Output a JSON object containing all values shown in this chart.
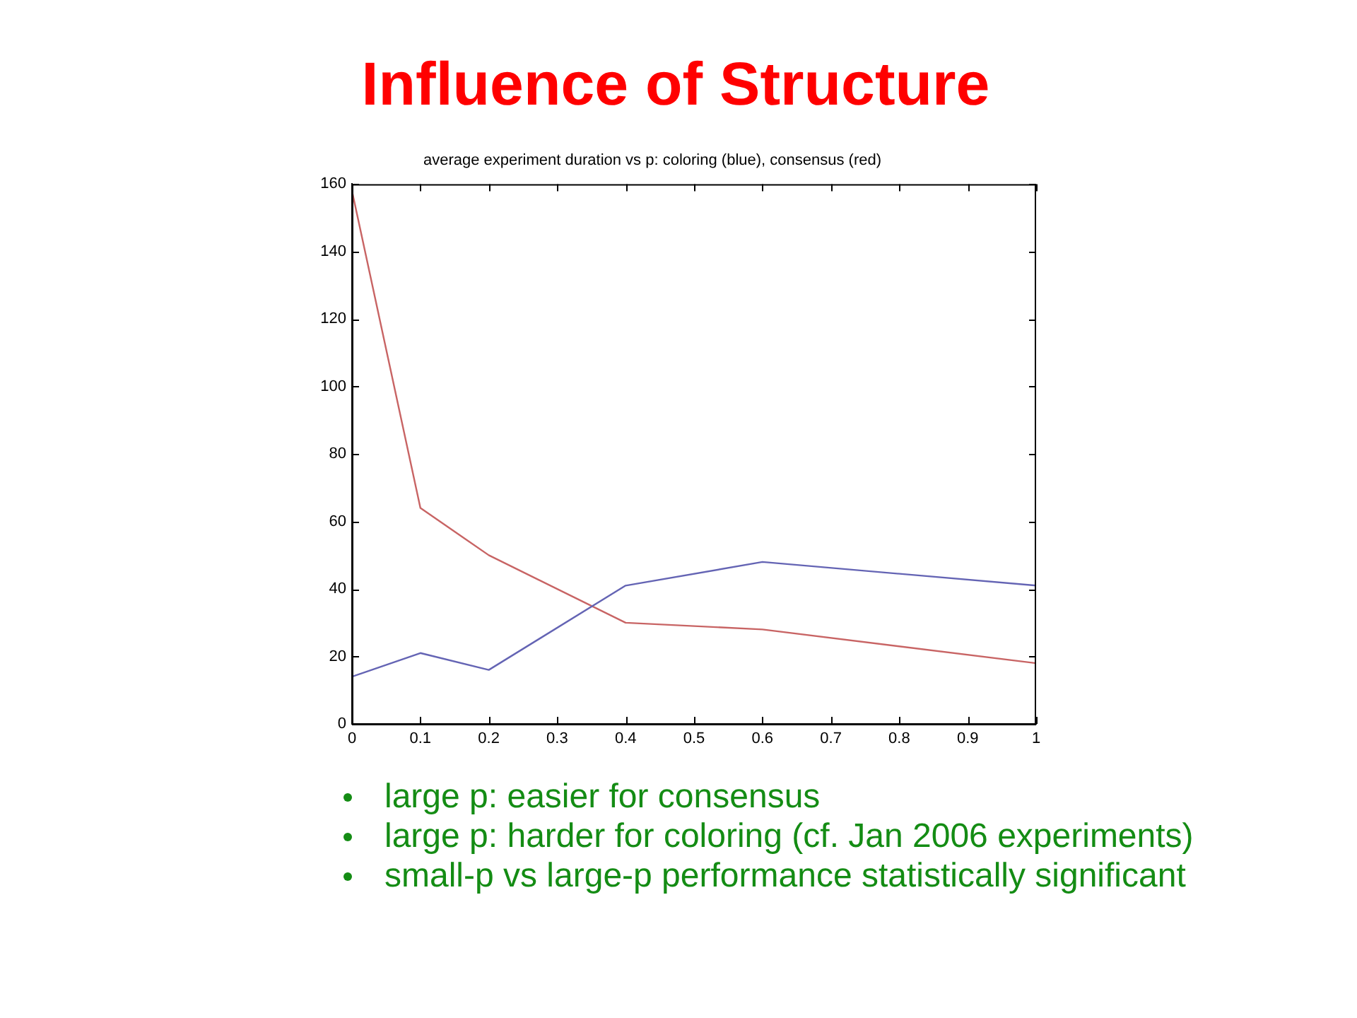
{
  "chart_data": {
    "type": "line",
    "title": "Influence of Structure",
    "subtitle": "average experiment duration vs p: coloring (blue), consensus (red)",
    "x": [
      0,
      0.1,
      0.2,
      0.4,
      0.6,
      1
    ],
    "series": [
      {
        "color": "#6464b4",
        "values": [
          14,
          21,
          16,
          41,
          48,
          41
        ]
      },
      {
        "color": "#c86464",
        "values": [
          158,
          64,
          50,
          30,
          28,
          18
        ]
      }
    ],
    "xlim": [
      0,
      1
    ],
    "xticks": [
      0,
      0.1,
      0.2,
      0.3,
      0.4,
      0.5,
      0.6,
      0.7,
      0.8,
      0.9,
      1
    ],
    "ylim": [
      0,
      160
    ],
    "yticks": [
      0,
      20,
      40,
      60,
      80,
      100,
      120,
      140,
      160
    ],
    "line_style": "solid",
    "annotations": [
      "large p: easier for consensus",
      "large p: harder for coloring (cf. Jan 2006 experiments)",
      "small-p vs large-p performance statistically significant"
    ]
  }
}
